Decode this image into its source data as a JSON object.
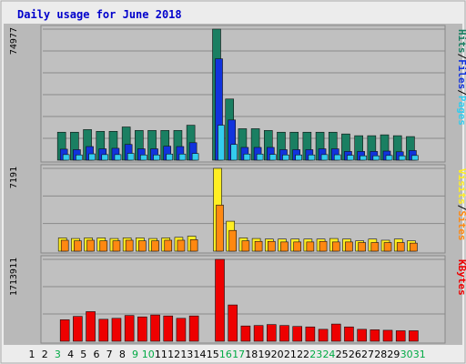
{
  "title": "Daily usage for June 2018",
  "colors": {
    "background": "#ececec",
    "frame": "#b9b9b9",
    "panel": "#c0c0c0",
    "title": "#0000cc",
    "hits": "#1a7f62",
    "files": "#1133dd",
    "pages": "#33ccee",
    "visits": "#ffee22",
    "sites": "#ff8811",
    "kbytes": "#ee0000",
    "weekend_label": "#00aa44"
  },
  "chart_data": {
    "type": "bar",
    "categories": [
      "1",
      "2",
      "3",
      "4",
      "5",
      "6",
      "7",
      "8",
      "9",
      "10",
      "11",
      "12",
      "13",
      "14",
      "15",
      "16",
      "17",
      "18",
      "19",
      "20",
      "21",
      "22",
      "23",
      "24",
      "25",
      "26",
      "27",
      "28",
      "29",
      "30",
      "31"
    ],
    "weekend_days": [
      "2",
      "3",
      "9",
      "10",
      "16",
      "17",
      "23",
      "24",
      "30",
      "31"
    ],
    "panels": [
      {
        "ymax": 74977,
        "ymax_label": "74977",
        "legend": [
          "Pages",
          "Files",
          "Hits"
        ],
        "series": [
          {
            "name": "Hits",
            "values": [
              null,
              16000,
              16000,
              17500,
              16500,
              16500,
              19000,
              17000,
              17000,
              17000,
              17000,
              20000,
              null,
              74977,
              35000,
              18000,
              18000,
              17000,
              16000,
              16000,
              16000,
              16000,
              16000,
              15000,
              14000,
              14000,
              14500,
              14000,
              13500,
              null,
              null
            ]
          },
          {
            "name": "Files",
            "values": [
              null,
              6300,
              6000,
              7800,
              6500,
              6800,
              9000,
              6500,
              6500,
              8000,
              7800,
              10000,
              null,
              58000,
              23000,
              7300,
              7300,
              7300,
              6000,
              6000,
              6000,
              6500,
              6500,
              5000,
              5000,
              5000,
              5200,
              4800,
              5500,
              null,
              null
            ]
          },
          {
            "name": "Pages",
            "values": [
              null,
              3200,
              3000,
              3600,
              3200,
              3200,
              3900,
              3000,
              3000,
              3500,
              3500,
              3800,
              null,
              20000,
              9000,
              3500,
              3500,
              3300,
              3000,
              3000,
              3000,
              3200,
              3100,
              2800,
              2500,
              2500,
              2700,
              2500,
              2700,
              null,
              null
            ]
          }
        ]
      },
      {
        "ymax": 7191,
        "ymax_label": "7191",
        "legend": [
          "Sites",
          "Visits"
        ],
        "series": [
          {
            "name": "Visits",
            "values": [
              null,
              1150,
              1100,
              1150,
              1150,
              1100,
              1150,
              1150,
              1100,
              1150,
              1200,
              1300,
              null,
              7191,
              2600,
              1150,
              1100,
              1050,
              1050,
              1050,
              1050,
              1050,
              1100,
              1050,
              900,
              1050,
              950,
              1050,
              900,
              null,
              null
            ]
          },
          {
            "name": "Sites",
            "values": [
              null,
              950,
              900,
              950,
              900,
              900,
              950,
              900,
              900,
              950,
              950,
              1000,
              null,
              4000,
              1800,
              900,
              850,
              850,
              800,
              800,
              800,
              850,
              800,
              800,
              750,
              750,
              750,
              750,
              700,
              null,
              null
            ]
          }
        ]
      },
      {
        "ymax": 1713911,
        "ymax_label": "1713911",
        "legend": [
          "KBytes"
        ],
        "series": [
          {
            "name": "KBytes",
            "values": [
              null,
              450000,
              520000,
              620000,
              460000,
              480000,
              540000,
              510000,
              550000,
              530000,
              480000,
              530000,
              null,
              1713911,
              760000,
              320000,
              330000,
              350000,
              330000,
              310000,
              300000,
              250000,
              360000,
              300000,
              250000,
              240000,
              230000,
              220000,
              220000,
              null,
              null
            ]
          }
        ]
      }
    ]
  }
}
